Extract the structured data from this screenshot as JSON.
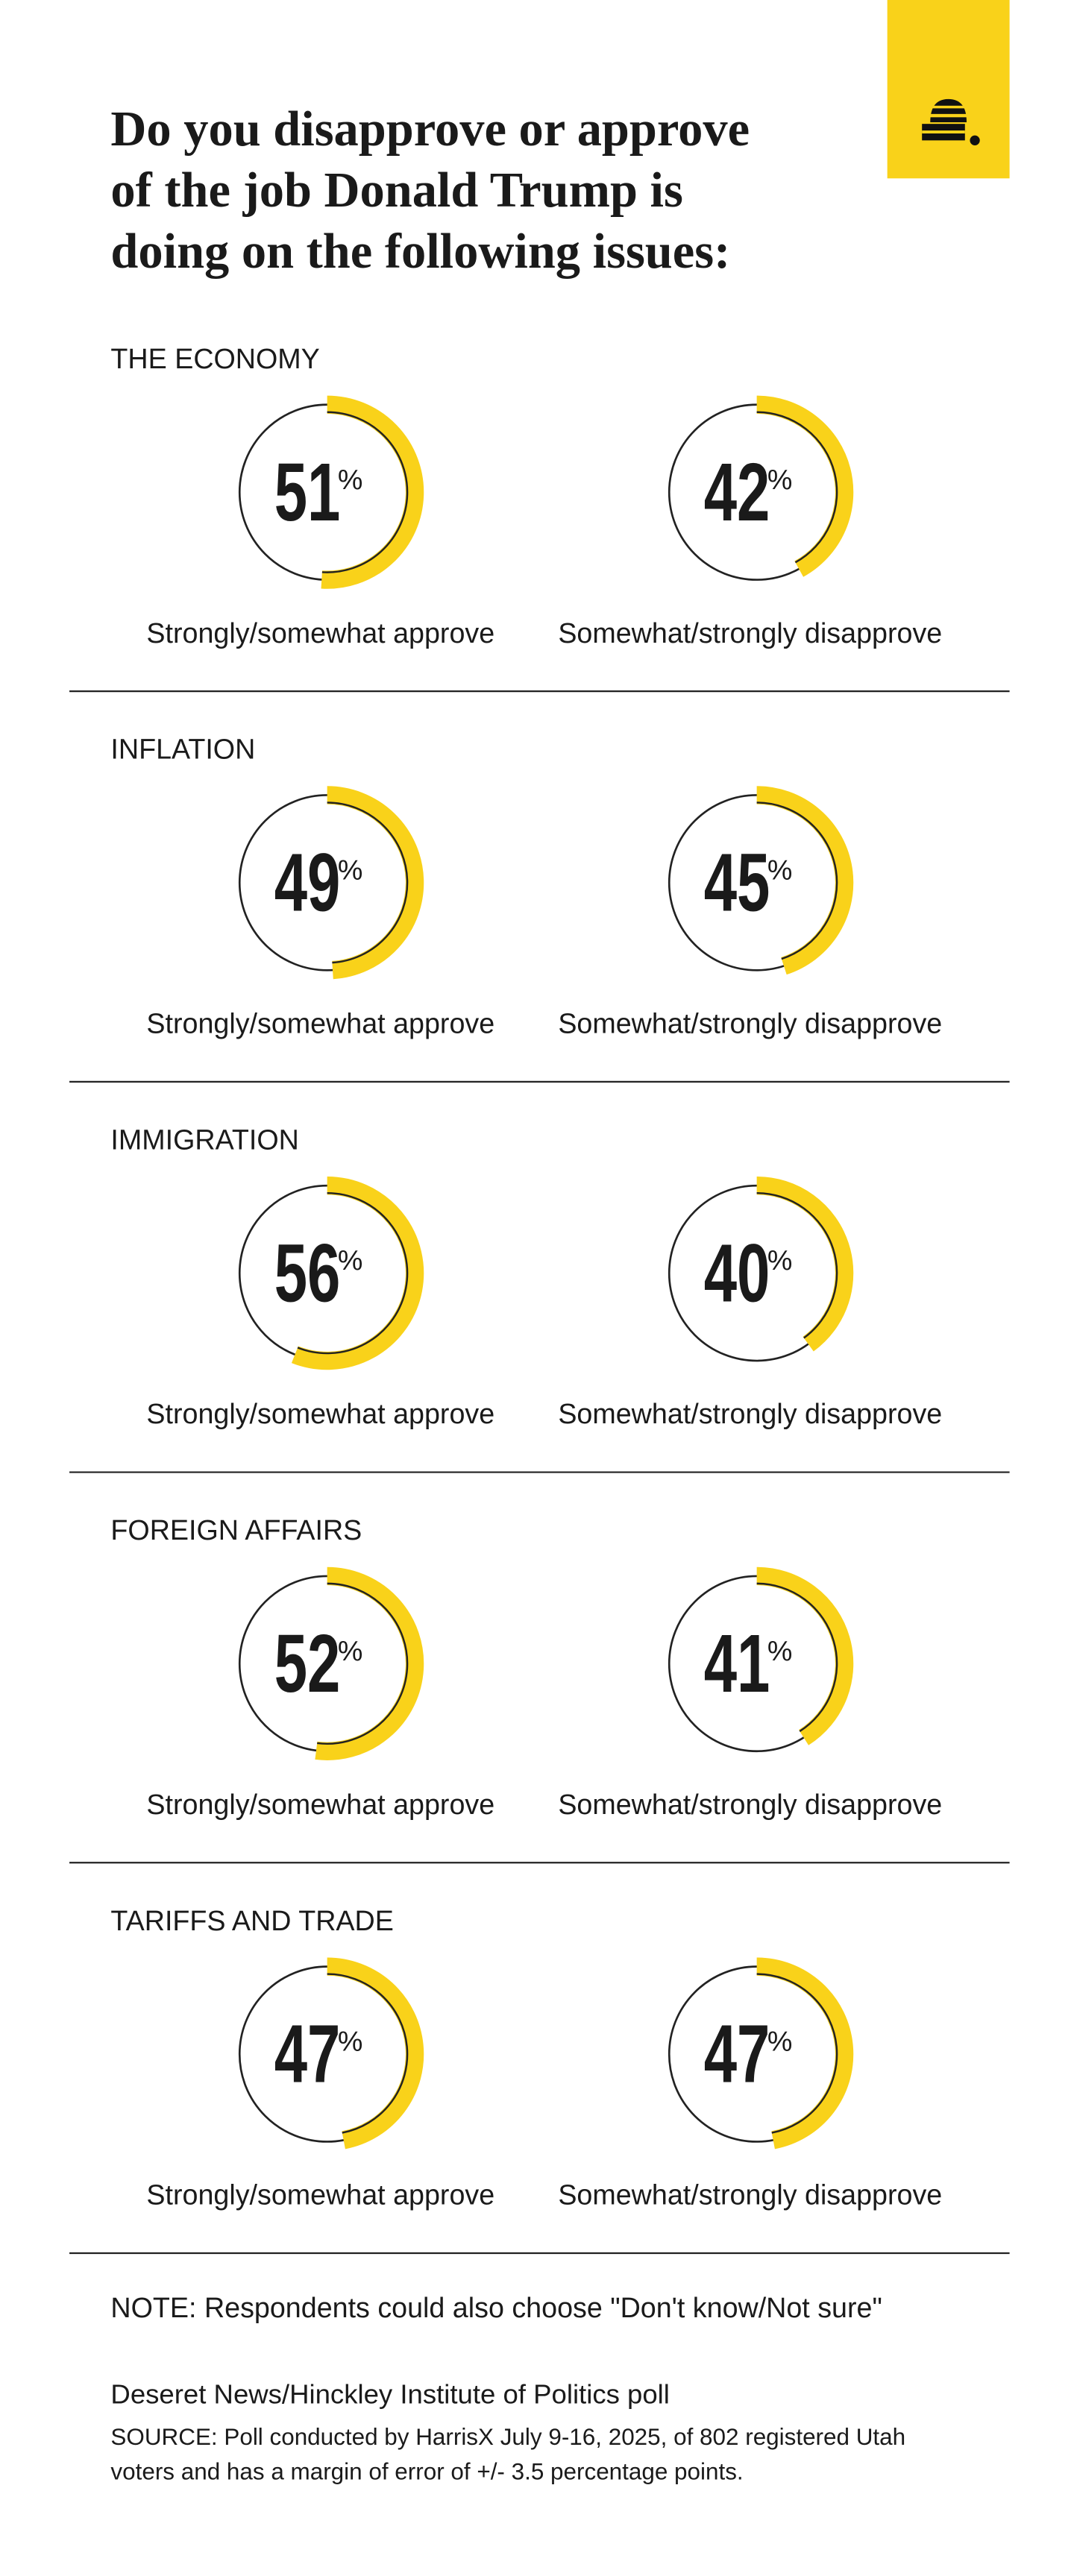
{
  "title": [
    "Do you disapprove or approve",
    "of the job Donald Trump is",
    "doing on the following issues:"
  ],
  "chart_data": [
    {
      "type": "donut",
      "title": "THE ECONOMY",
      "categories": [
        "Strongly/somewhat approve",
        "Somewhat/strongly disapprove"
      ],
      "values": [
        51,
        42
      ],
      "unit": "%",
      "color": "#f9d21a"
    },
    {
      "type": "donut",
      "title": "INFLATION",
      "categories": [
        "Strongly/somewhat approve",
        "Somewhat/strongly disapprove"
      ],
      "values": [
        49,
        45
      ],
      "unit": "%",
      "color": "#f9d21a"
    },
    {
      "type": "donut",
      "title": "IMMIGRATION",
      "categories": [
        "Strongly/somewhat approve",
        "Somewhat/strongly disapprove"
      ],
      "values": [
        56,
        40
      ],
      "unit": "%",
      "color": "#f9d21a"
    },
    {
      "type": "donut",
      "title": "FOREIGN AFFAIRS",
      "categories": [
        "Strongly/somewhat approve",
        "Somewhat/strongly disapprove"
      ],
      "values": [
        52,
        41
      ],
      "unit": "%",
      "color": "#f9d21a"
    },
    {
      "type": "donut",
      "title": "TARIFFS AND TRADE",
      "categories": [
        "Strongly/somewhat approve",
        "Somewhat/strongly disapprove"
      ],
      "values": [
        47,
        47
      ],
      "unit": "%",
      "color": "#f9d21a"
    }
  ],
  "note": "NOTE: Respondents could also choose \"Don't know/Not sure\"",
  "source": {
    "name": "Deseret News/Hinckley Institute of Politics poll",
    "text": "SOURCE: Poll conducted by HarrisX July 9-16, 2025, of 802 registered Utah voters and has a margin of error of +/- 3.5 percentage points."
  }
}
